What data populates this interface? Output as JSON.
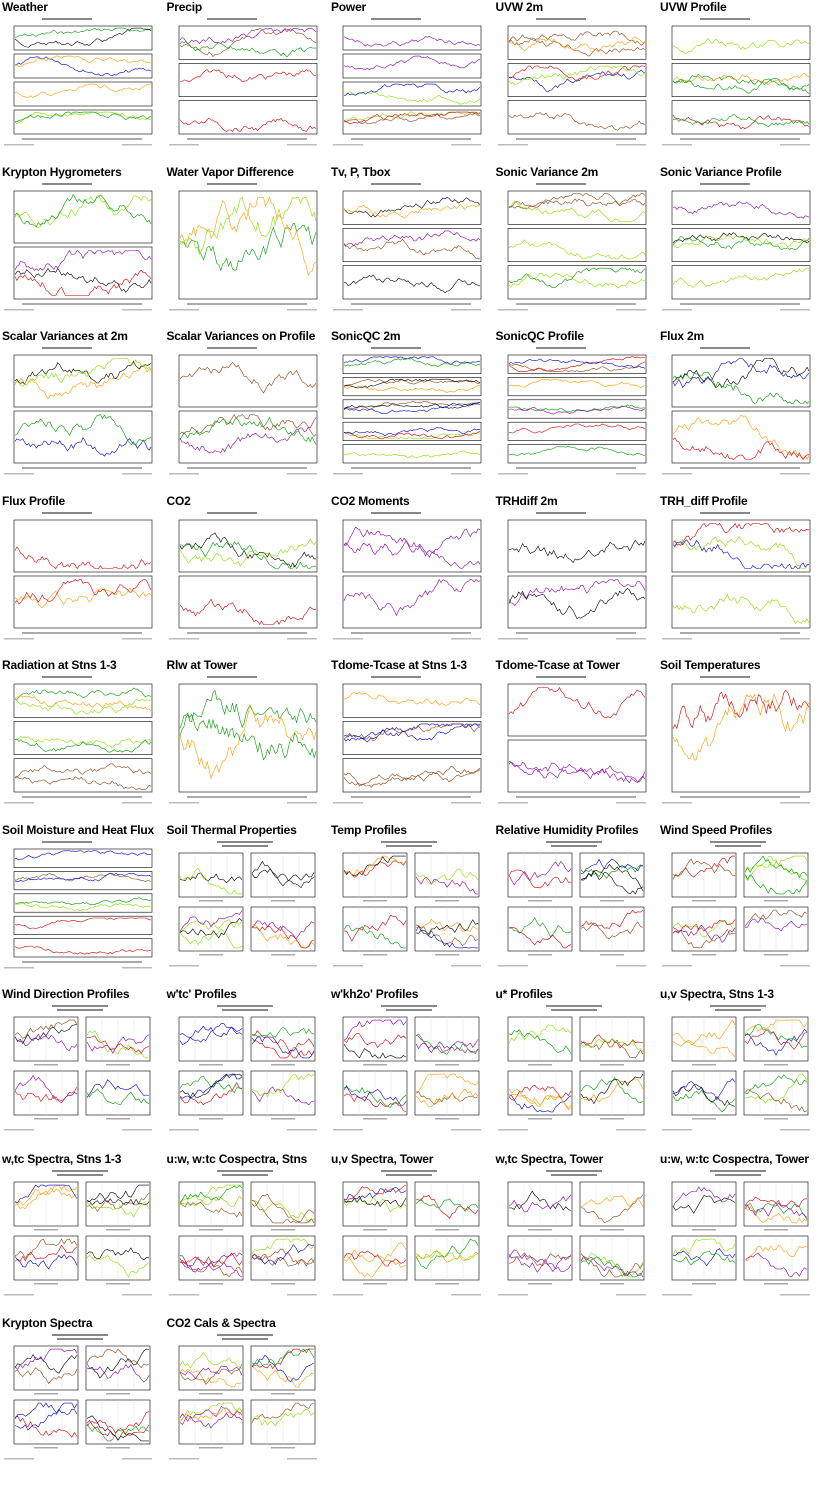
{
  "page": {
    "colors": {
      "background": "#ffffff",
      "title": "#000000",
      "series": [
        "#d00000",
        "#0000cc",
        "#009900",
        "#ff9900",
        "#88dd00",
        "#000000",
        "#8800aa",
        "#8b4513"
      ]
    }
  },
  "cells": [
    {
      "title": "Weather",
      "kind": "ts",
      "panels": 4
    },
    {
      "title": "Precip",
      "kind": "ts",
      "panels": 3
    },
    {
      "title": "Power",
      "kind": "ts",
      "panels": 4
    },
    {
      "title": "UVW 2m",
      "kind": "ts",
      "panels": 3
    },
    {
      "title": "UVW Profile",
      "kind": "ts",
      "panels": 3
    },
    {
      "title": "Krypton Hygrometers",
      "kind": "ts",
      "panels": 2
    },
    {
      "title": "Water Vapor Difference",
      "kind": "ts",
      "panels": 1
    },
    {
      "title": "Tv, P, Tbox",
      "kind": "ts",
      "panels": 3
    },
    {
      "title": "Sonic Variance 2m",
      "kind": "ts",
      "panels": 3
    },
    {
      "title": "Sonic Variance Profile",
      "kind": "ts",
      "panels": 3
    },
    {
      "title": "Scalar Variances at 2m",
      "kind": "ts",
      "panels": 2
    },
    {
      "title": "Scalar Variances on Profile",
      "kind": "ts",
      "panels": 2
    },
    {
      "title": "SonicQC 2m",
      "kind": "ts",
      "panels": 5
    },
    {
      "title": "SonicQC Profile",
      "kind": "ts",
      "panels": 5
    },
    {
      "title": "Flux 2m",
      "kind": "ts",
      "panels": 2
    },
    {
      "title": "Flux Profile",
      "kind": "ts",
      "panels": 2
    },
    {
      "title": "CO2",
      "kind": "ts",
      "panels": 2
    },
    {
      "title": "CO2 Moments",
      "kind": "ts",
      "panels": 2
    },
    {
      "title": "TRHdiff 2m",
      "kind": "ts",
      "panels": 2
    },
    {
      "title": "TRH_diff Profile",
      "kind": "ts",
      "panels": 2
    },
    {
      "title": "Radiation at Stns 1-3",
      "kind": "ts",
      "panels": 3
    },
    {
      "title": "Rlw at Tower",
      "kind": "ts",
      "panels": 1
    },
    {
      "title": "Tdome-Tcase at Stns 1-3",
      "kind": "ts",
      "panels": 3
    },
    {
      "title": "Tdome-Tcase at Tower",
      "kind": "ts",
      "panels": 2
    },
    {
      "title": "Soil Temperatures",
      "kind": "ts",
      "panels": 1
    },
    {
      "title": "Soil Moisture and Heat Flux",
      "kind": "ts",
      "panels": 5
    },
    {
      "title": "Soil Thermal Properties",
      "kind": "quad",
      "panels": 4
    },
    {
      "title": "Temp Profiles",
      "kind": "quad",
      "panels": 4
    },
    {
      "title": "Relative Humidity Profiles",
      "kind": "quad",
      "panels": 4
    },
    {
      "title": "Wind Speed Profiles",
      "kind": "quad",
      "panels": 4
    },
    {
      "title": "Wind Direction Profiles",
      "kind": "quad",
      "panels": 4
    },
    {
      "title": "w'tc' Profiles",
      "kind": "quad",
      "panels": 4
    },
    {
      "title": "w'kh2o' Profiles",
      "kind": "quad",
      "panels": 4
    },
    {
      "title": "u* Profiles",
      "kind": "quad",
      "panels": 4
    },
    {
      "title": "u,v Spectra, Stns 1-3",
      "kind": "quad",
      "panels": 4
    },
    {
      "title": "w,tc Spectra, Stns 1-3",
      "kind": "quad",
      "panels": 4
    },
    {
      "title": "u:w, w:tc Cospectra, Stns",
      "kind": "quad",
      "panels": 4
    },
    {
      "title": "u,v Spectra, Tower",
      "kind": "quad",
      "panels": 4
    },
    {
      "title": "w,tc Spectra, Tower",
      "kind": "quad",
      "panels": 4
    },
    {
      "title": "u:w, w:tc Cospectra, Tower",
      "kind": "quad",
      "panels": 4
    },
    {
      "title": "Krypton Spectra",
      "kind": "quad",
      "panels": 4
    },
    {
      "title": "CO2 Cals & Spectra",
      "kind": "quad",
      "panels": 4
    }
  ]
}
